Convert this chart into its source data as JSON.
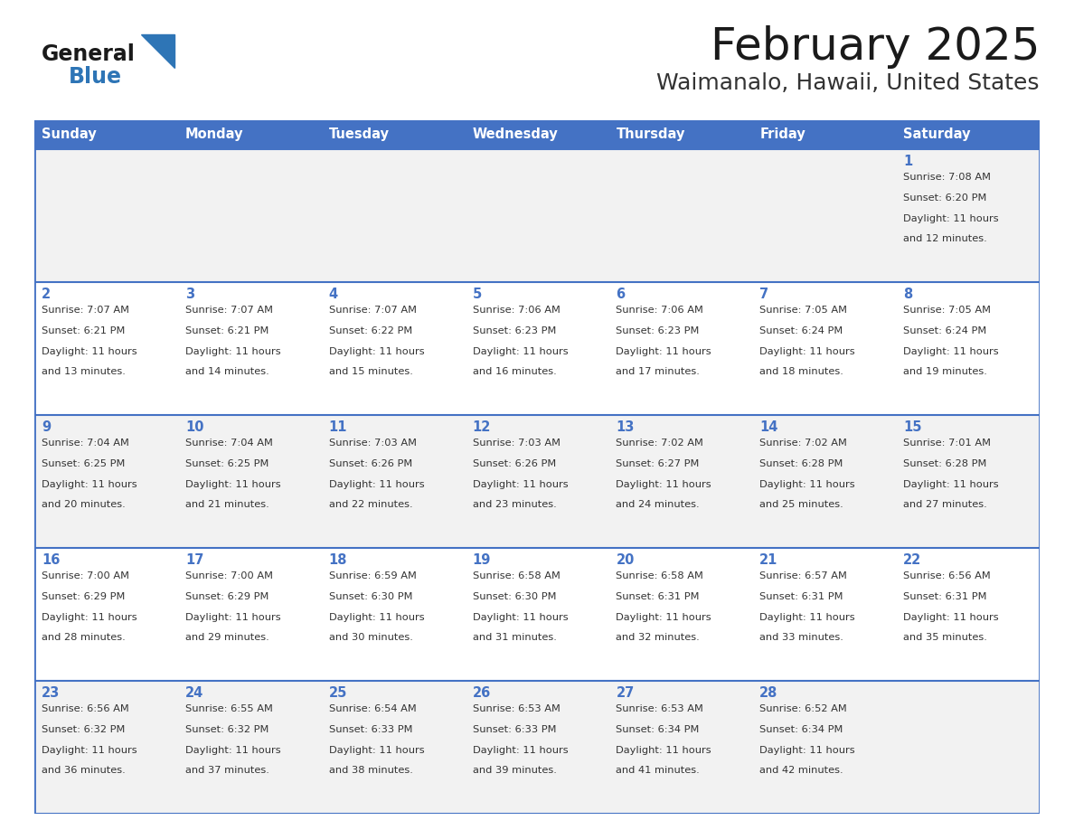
{
  "title": "February 2025",
  "subtitle": "Waimanalo, Hawaii, United States",
  "header_bg": "#4472C4",
  "header_text_color": "#FFFFFF",
  "day_names": [
    "Sunday",
    "Monday",
    "Tuesday",
    "Wednesday",
    "Thursday",
    "Friday",
    "Saturday"
  ],
  "background_color": "#FFFFFF",
  "cell_bg_odd": "#F2F2F2",
  "cell_bg_even": "#FFFFFF",
  "border_color": "#4472C4",
  "grid_line_color": "#4472C4",
  "title_color": "#1a1a1a",
  "subtitle_color": "#333333",
  "day_num_color": "#4472C4",
  "text_color": "#333333",
  "logo_general_color": "#1a1a1a",
  "logo_blue_color": "#2E75B6",
  "days_data": [
    {
      "day": 1,
      "col": 6,
      "row": 0,
      "sunrise": "7:08 AM",
      "sunset": "6:20 PM",
      "daylight": "11 hours and 12 minutes."
    },
    {
      "day": 2,
      "col": 0,
      "row": 1,
      "sunrise": "7:07 AM",
      "sunset": "6:21 PM",
      "daylight": "11 hours and 13 minutes."
    },
    {
      "day": 3,
      "col": 1,
      "row": 1,
      "sunrise": "7:07 AM",
      "sunset": "6:21 PM",
      "daylight": "11 hours and 14 minutes."
    },
    {
      "day": 4,
      "col": 2,
      "row": 1,
      "sunrise": "7:07 AM",
      "sunset": "6:22 PM",
      "daylight": "11 hours and 15 minutes."
    },
    {
      "day": 5,
      "col": 3,
      "row": 1,
      "sunrise": "7:06 AM",
      "sunset": "6:23 PM",
      "daylight": "11 hours and 16 minutes."
    },
    {
      "day": 6,
      "col": 4,
      "row": 1,
      "sunrise": "7:06 AM",
      "sunset": "6:23 PM",
      "daylight": "11 hours and 17 minutes."
    },
    {
      "day": 7,
      "col": 5,
      "row": 1,
      "sunrise": "7:05 AM",
      "sunset": "6:24 PM",
      "daylight": "11 hours and 18 minutes."
    },
    {
      "day": 8,
      "col": 6,
      "row": 1,
      "sunrise": "7:05 AM",
      "sunset": "6:24 PM",
      "daylight": "11 hours and 19 minutes."
    },
    {
      "day": 9,
      "col": 0,
      "row": 2,
      "sunrise": "7:04 AM",
      "sunset": "6:25 PM",
      "daylight": "11 hours and 20 minutes."
    },
    {
      "day": 10,
      "col": 1,
      "row": 2,
      "sunrise": "7:04 AM",
      "sunset": "6:25 PM",
      "daylight": "11 hours and 21 minutes."
    },
    {
      "day": 11,
      "col": 2,
      "row": 2,
      "sunrise": "7:03 AM",
      "sunset": "6:26 PM",
      "daylight": "11 hours and 22 minutes."
    },
    {
      "day": 12,
      "col": 3,
      "row": 2,
      "sunrise": "7:03 AM",
      "sunset": "6:26 PM",
      "daylight": "11 hours and 23 minutes."
    },
    {
      "day": 13,
      "col": 4,
      "row": 2,
      "sunrise": "7:02 AM",
      "sunset": "6:27 PM",
      "daylight": "11 hours and 24 minutes."
    },
    {
      "day": 14,
      "col": 5,
      "row": 2,
      "sunrise": "7:02 AM",
      "sunset": "6:28 PM",
      "daylight": "11 hours and 25 minutes."
    },
    {
      "day": 15,
      "col": 6,
      "row": 2,
      "sunrise": "7:01 AM",
      "sunset": "6:28 PM",
      "daylight": "11 hours and 27 minutes."
    },
    {
      "day": 16,
      "col": 0,
      "row": 3,
      "sunrise": "7:00 AM",
      "sunset": "6:29 PM",
      "daylight": "11 hours and 28 minutes."
    },
    {
      "day": 17,
      "col": 1,
      "row": 3,
      "sunrise": "7:00 AM",
      "sunset": "6:29 PM",
      "daylight": "11 hours and 29 minutes."
    },
    {
      "day": 18,
      "col": 2,
      "row": 3,
      "sunrise": "6:59 AM",
      "sunset": "6:30 PM",
      "daylight": "11 hours and 30 minutes."
    },
    {
      "day": 19,
      "col": 3,
      "row": 3,
      "sunrise": "6:58 AM",
      "sunset": "6:30 PM",
      "daylight": "11 hours and 31 minutes."
    },
    {
      "day": 20,
      "col": 4,
      "row": 3,
      "sunrise": "6:58 AM",
      "sunset": "6:31 PM",
      "daylight": "11 hours and 32 minutes."
    },
    {
      "day": 21,
      "col": 5,
      "row": 3,
      "sunrise": "6:57 AM",
      "sunset": "6:31 PM",
      "daylight": "11 hours and 33 minutes."
    },
    {
      "day": 22,
      "col": 6,
      "row": 3,
      "sunrise": "6:56 AM",
      "sunset": "6:31 PM",
      "daylight": "11 hours and 35 minutes."
    },
    {
      "day": 23,
      "col": 0,
      "row": 4,
      "sunrise": "6:56 AM",
      "sunset": "6:32 PM",
      "daylight": "11 hours and 36 minutes."
    },
    {
      "day": 24,
      "col": 1,
      "row": 4,
      "sunrise": "6:55 AM",
      "sunset": "6:32 PM",
      "daylight": "11 hours and 37 minutes."
    },
    {
      "day": 25,
      "col": 2,
      "row": 4,
      "sunrise": "6:54 AM",
      "sunset": "6:33 PM",
      "daylight": "11 hours and 38 minutes."
    },
    {
      "day": 26,
      "col": 3,
      "row": 4,
      "sunrise": "6:53 AM",
      "sunset": "6:33 PM",
      "daylight": "11 hours and 39 minutes."
    },
    {
      "day": 27,
      "col": 4,
      "row": 4,
      "sunrise": "6:53 AM",
      "sunset": "6:34 PM",
      "daylight": "11 hours and 41 minutes."
    },
    {
      "day": 28,
      "col": 5,
      "row": 4,
      "sunrise": "6:52 AM",
      "sunset": "6:34 PM",
      "daylight": "11 hours and 42 minutes."
    }
  ]
}
